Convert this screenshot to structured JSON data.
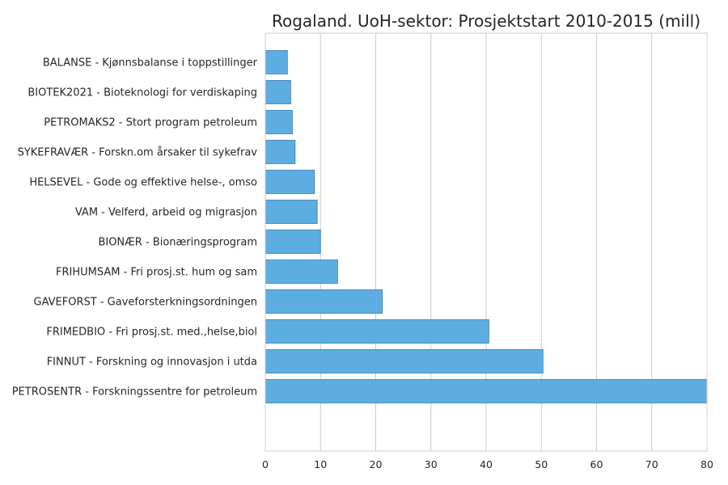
{
  "chart_data": {
    "type": "bar",
    "orientation": "horizontal",
    "title": "Rogaland. UoH-sektor: Prosjektstart 2010-2015 (mill)",
    "xlabel": "",
    "ylabel": "",
    "xlim": [
      0,
      80
    ],
    "xticks": [
      0,
      10,
      20,
      30,
      40,
      50,
      60,
      70,
      80
    ],
    "grid": true,
    "legend": "none",
    "bar_color": "#5dade2",
    "categories": [
      "BALANSE - Kjønnsbalanse i toppstillinger",
      "BIOTEK2021 - Bioteknologi for verdiskaping",
      "PETROMAKS2 - Stort program petroleum",
      "SYKEFRAVÆR - Forskn.om årsaker til sykefrav",
      "HELSEVEL - Gode og effektive helse-, omso",
      "VAM - Velferd, arbeid og migrasjon",
      "BIONÆR - Bionæringsprogram",
      "FRIHUMSAM - Fri prosj.st. hum og sam",
      "GAVEFORST - Gaveforsterkningsordningen",
      "FRIMEDBIO - Fri prosj.st. med.,helse,biol",
      "FINNUT - Forskning og innovasjon i utda",
      "PETROSENTR - Forskningssentre for petroleum"
    ],
    "values": [
      4.0,
      4.6,
      4.9,
      5.4,
      8.9,
      9.4,
      10.0,
      13.1,
      21.2,
      40.5,
      50.3,
      80.0
    ]
  }
}
